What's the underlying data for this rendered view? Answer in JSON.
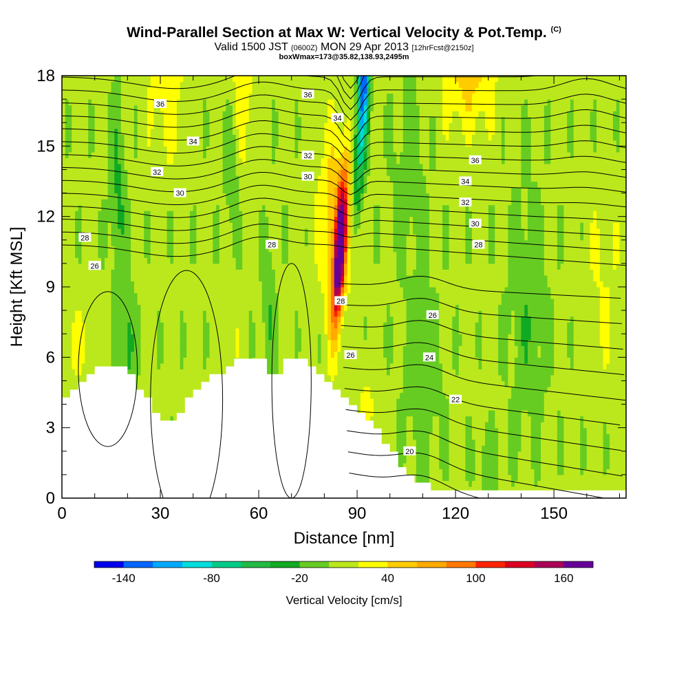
{
  "header": {
    "title": "Wind-Parallel Section at Max W: Vertical Velocity & Pot.Temp.",
    "copyright": "(C)",
    "valid_prefix": "Valid 1500 JST",
    "valid_utc": "(0600Z)",
    "valid_date": "MON 29 Apr 2013",
    "forecast_info": "[12hrFcst@2150z]",
    "box_info": "boxWmax=173@35.82,138.93,2495m"
  },
  "chart_data": {
    "type": "heatmap",
    "xlabel": "Distance [nm]",
    "ylabel": "Height [Kft MSL]",
    "xlim": [
      0,
      172
    ],
    "ylim": [
      0,
      18
    ],
    "x_ticks": [
      0,
      30,
      60,
      90,
      120,
      150
    ],
    "y_ticks": [
      0,
      3,
      6,
      9,
      12,
      15,
      18
    ],
    "colorbar": {
      "title": "Vertical Velocity [cm/s]",
      "tick_labels": [
        -140,
        -80,
        -20,
        40,
        100,
        160
      ],
      "levels": [
        -160,
        -140,
        -120,
        -100,
        -80,
        -60,
        -40,
        -20,
        0,
        20,
        40,
        60,
        80,
        100,
        120,
        140,
        160,
        180
      ],
      "colors": [
        "#0000ee",
        "#0066ff",
        "#00aaff",
        "#00dddd",
        "#00cc88",
        "#22bb44",
        "#11aa22",
        "#66cc22",
        "#bbe81c",
        "#ffff00",
        "#ffcc00",
        "#ffaa00",
        "#ff7700",
        "#ff2200",
        "#dd0022",
        "#aa0055",
        "#660099"
      ]
    },
    "terrain_kft": [
      [
        0,
        4.2
      ],
      [
        5,
        4.8
      ],
      [
        10,
        5.5
      ],
      [
        20,
        5.5
      ],
      [
        25,
        4.5
      ],
      [
        30,
        3.3
      ],
      [
        35,
        3.3
      ],
      [
        40,
        4.5
      ],
      [
        45,
        5.0
      ],
      [
        50,
        5.5
      ],
      [
        55,
        6.1
      ],
      [
        60,
        6.1
      ],
      [
        65,
        5.0
      ],
      [
        68,
        5.8
      ],
      [
        75,
        5.8
      ],
      [
        80,
        5.2
      ],
      [
        85,
        4.3
      ],
      [
        90,
        3.8
      ],
      [
        95,
        3.1
      ],
      [
        100,
        2.2
      ],
      [
        105,
        1.2
      ],
      [
        110,
        0.6
      ],
      [
        115,
        0.3
      ],
      [
        172,
        0.3
      ]
    ],
    "theta_contour_labels": [
      {
        "label": "36",
        "x": 30,
        "y": 16.8
      },
      {
        "label": "36",
        "x": 75,
        "y": 17.2
      },
      {
        "label": "36",
        "x": 126,
        "y": 14.4
      },
      {
        "label": "34",
        "x": 40,
        "y": 15.2
      },
      {
        "label": "34",
        "x": 84,
        "y": 16.2
      },
      {
        "label": "34",
        "x": 123,
        "y": 13.5
      },
      {
        "label": "32",
        "x": 29,
        "y": 13.9
      },
      {
        "label": "32",
        "x": 75,
        "y": 14.6
      },
      {
        "label": "32",
        "x": 123,
        "y": 12.6
      },
      {
        "label": "30",
        "x": 36,
        "y": 13.0
      },
      {
        "label": "30",
        "x": 75,
        "y": 13.7
      },
      {
        "label": "30",
        "x": 126,
        "y": 11.7
      },
      {
        "label": "28",
        "x": 7,
        "y": 11.1
      },
      {
        "label": "28",
        "x": 64,
        "y": 10.8
      },
      {
        "label": "28",
        "x": 127,
        "y": 10.8
      },
      {
        "label": "28",
        "x": 85,
        "y": 8.4
      },
      {
        "label": "26",
        "x": 10,
        "y": 9.9
      },
      {
        "label": "26",
        "x": 88,
        "y": 6.1
      },
      {
        "label": "26",
        "x": 113,
        "y": 7.8
      },
      {
        "label": "24",
        "x": 112,
        "y": 6.0
      },
      {
        "label": "22",
        "x": 120,
        "y": 4.2
      },
      {
        "label": "20",
        "x": 106,
        "y": 2.0
      }
    ]
  }
}
